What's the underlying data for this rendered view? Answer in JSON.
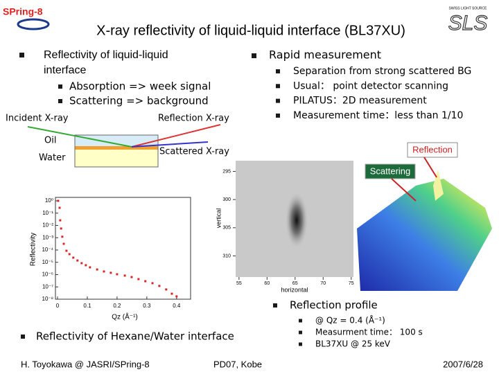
{
  "header": {
    "logo_left": "SPring-8",
    "title": "X-ray reflectivity of liquid-liquid interface (BL37XU)",
    "logo_right_small": "SWISS LIGHT SOURCE",
    "logo_right": "SLS"
  },
  "left_bullets": {
    "heading": [
      "Reflectivity of liquid-liquid",
      "interface"
    ],
    "items": [
      "Absorption => week signal",
      "Scattering => background"
    ]
  },
  "right_bullets": {
    "heading": "Rapid measurement",
    "items": [
      "Separation from strong scattered BG",
      "Usual： point detector scanning",
      "PILATUS：2D measurement",
      "Measurement time：less than 1/10"
    ]
  },
  "diagram": {
    "incident": "Incident X-ray",
    "reflection": "Reflection X-ray",
    "oil": "Oil",
    "water": "Water",
    "scattered": "Scattered X-ray"
  },
  "detector_image": {
    "reflection_label": "Reflection",
    "scattering_label": "Scattering",
    "y_label": "vertical",
    "x_label": "horizontal",
    "ylim": [
      293.1,
      313.75
    ],
    "yticks": [
      295,
      300,
      305,
      310
    ],
    "xlim": [
      54.4,
      75.4
    ],
    "xticks": [
      55,
      60,
      65,
      70,
      75
    ]
  },
  "reflectivity_plot": {
    "type": "scatter",
    "y_label": "Reflectivity",
    "x_label": "Qz (Å⁻¹)",
    "log_y": true,
    "color": "#d62728",
    "xlim": [
      -0.007,
      0.447
    ],
    "ylim": [
      1e-08,
      1.9
    ],
    "xticks": [
      0,
      0.1,
      0.2,
      0.3,
      0.4
    ],
    "yticks": [
      {
        "value": 1,
        "label": "10⁰"
      },
      {
        "value": 0.1,
        "label": "10⁻¹"
      },
      {
        "value": 0.01,
        "label": "10⁻²"
      },
      {
        "value": 0.001,
        "label": "10⁻³"
      },
      {
        "value": 0.0001,
        "label": "10⁻⁴"
      },
      {
        "value": 1e-05,
        "label": "10⁻⁵"
      },
      {
        "value": 1e-06,
        "label": "10⁻⁶"
      },
      {
        "value": 1e-07,
        "label": "10⁻⁷"
      },
      {
        "value": 1e-08,
        "label": "10⁻⁸"
      }
    ],
    "x": [
      0.002,
      0.007,
      0.009,
      0.012,
      0.016,
      0.021,
      0.03,
      0.04,
      0.053,
      0.067,
      0.081,
      0.095,
      0.109,
      0.133,
      0.156,
      0.179,
      0.2,
      0.226,
      0.249,
      0.272,
      0.295,
      0.319,
      0.342,
      0.365,
      0.384,
      0.4
    ],
    "values": [
      1,
      0.27,
      0.026,
      0.0056,
      0.0012,
      0.00032,
      8.7e-05,
      4.6e-05,
      2.4e-05,
      1.4e-05,
      8.5e-06,
      5.8e-06,
      3.9e-06,
      2.6e-06,
      1.8e-06,
      1.4e-06,
      1.07e-06,
      8.3e-07,
      6.3e-07,
      4.3e-07,
      2.9e-07,
      2e-07,
      1.2e-07,
      6.2e-08,
      2.8e-08,
      1.7e-08
    ]
  },
  "caption": "Reflectivity of Hexane/Water interface",
  "profile": {
    "heading": "Reflection profile",
    "items": [
      "@ Qz = 0.4 (Å⁻¹)",
      "Measurment time： 100 s",
      "BL37XU @ 25 keV"
    ]
  },
  "footer": {
    "left": "H. Toyokawa @ JASRI/SPring-8",
    "center": "PD07, Kobe",
    "right": "2007/6/28"
  }
}
